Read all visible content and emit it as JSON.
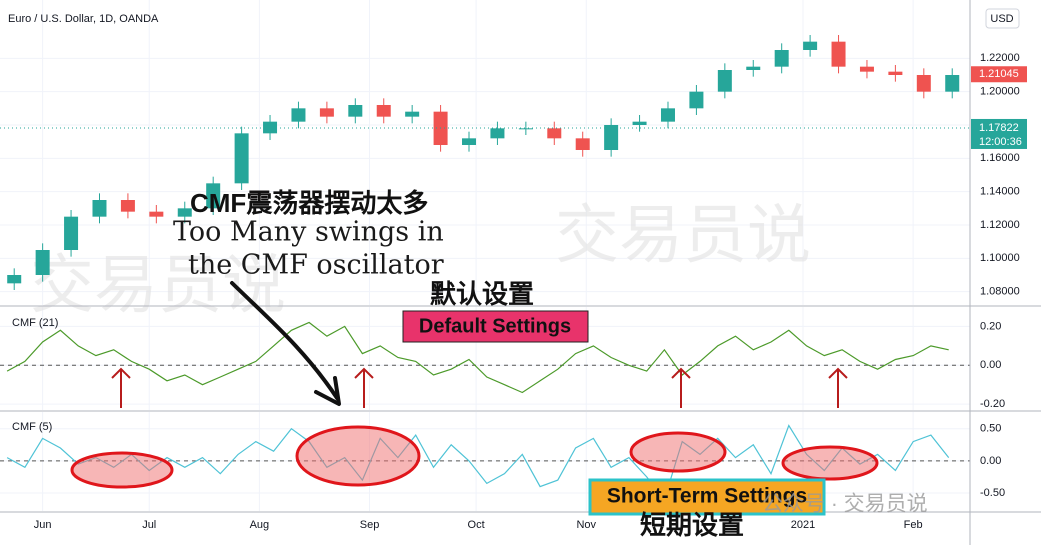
{
  "chart_data": [
    {
      "type": "candlestick",
      "title": "Euro / U.S. Dollar, 1D, OANDA",
      "currency": "USD",
      "x": [
        -8,
        0,
        8,
        16,
        24,
        32,
        40,
        48,
        56,
        64,
        72,
        80,
        88,
        96,
        104,
        112,
        120,
        128,
        136,
        144,
        152,
        160,
        168,
        176,
        184,
        192,
        200,
        208,
        216,
        224,
        232,
        240,
        248,
        256
      ],
      "open": [
        1.085,
        1.09,
        1.105,
        1.125,
        1.135,
        1.128,
        1.125,
        1.13,
        1.145,
        1.175,
        1.182,
        1.19,
        1.185,
        1.192,
        1.185,
        1.188,
        1.168,
        1.172,
        1.178,
        1.178,
        1.172,
        1.165,
        1.18,
        1.182,
        1.19,
        1.2,
        1.213,
        1.215,
        1.225,
        1.23,
        1.215,
        1.212,
        1.21,
        1.2
      ],
      "high": [
        1.094,
        1.109,
        1.129,
        1.139,
        1.139,
        1.132,
        1.134,
        1.149,
        1.179,
        1.186,
        1.194,
        1.194,
        1.196,
        1.196,
        1.192,
        1.192,
        1.176,
        1.182,
        1.182,
        1.182,
        1.176,
        1.184,
        1.186,
        1.194,
        1.204,
        1.217,
        1.219,
        1.229,
        1.234,
        1.234,
        1.219,
        1.216,
        1.214,
        1.214
      ],
      "low": [
        1.081,
        1.086,
        1.101,
        1.121,
        1.124,
        1.121,
        1.121,
        1.126,
        1.141,
        1.171,
        1.178,
        1.181,
        1.181,
        1.181,
        1.181,
        1.164,
        1.164,
        1.168,
        1.174,
        1.168,
        1.161,
        1.161,
        1.176,
        1.178,
        1.186,
        1.196,
        1.209,
        1.211,
        1.221,
        1.211,
        1.208,
        1.206,
        1.196,
        1.196
      ],
      "close": [
        1.09,
        1.105,
        1.125,
        1.135,
        1.128,
        1.125,
        1.13,
        1.145,
        1.175,
        1.182,
        1.19,
        1.185,
        1.192,
        1.185,
        1.188,
        1.168,
        1.172,
        1.178,
        1.178,
        1.172,
        1.165,
        1.18,
        1.182,
        1.19,
        1.2,
        1.213,
        1.215,
        1.225,
        1.23,
        1.215,
        1.212,
        1.21,
        1.2,
        1.21
      ],
      "up_color": "#26a69a",
      "down_color": "#ef5350",
      "current_price": 1.21045,
      "line_price": 1.17822,
      "countdown": "12:00:36",
      "xlim": [
        -12,
        261
      ],
      "ylim": [
        1.072,
        1.255
      ],
      "yticks": [
        {
          "value": 1.08,
          "label": "1.08000"
        },
        {
          "value": 1.1,
          "label": "1.10000"
        },
        {
          "value": 1.12,
          "label": "1.12000"
        },
        {
          "value": 1.14,
          "label": "1.14000"
        },
        {
          "value": 1.16,
          "label": "1.16000"
        },
        {
          "value": 1.18,
          "label": "1.18000"
        },
        {
          "value": 1.2,
          "label": "1.20000"
        },
        {
          "value": 1.22,
          "label": "1.22000"
        }
      ],
      "grid": true,
      "annotations": [
        "CMF震荡器摆动太多",
        "Too Many swings in",
        "the CMF oscillator"
      ],
      "watermark": "交易员说"
    },
    {
      "type": "line",
      "title": "CMF (21)",
      "color": "#4c9a2a",
      "zero_line": 0,
      "x": [
        -10,
        -5,
        0,
        5,
        10,
        15,
        20,
        25,
        30,
        35,
        40,
        45,
        50,
        55,
        60,
        65,
        70,
        75,
        80,
        85,
        90,
        95,
        100,
        105,
        110,
        115,
        120,
        125,
        130,
        135,
        140,
        145,
        150,
        155,
        160,
        165,
        170,
        175,
        180,
        185,
        190,
        195,
        200,
        205,
        210,
        215,
        220,
        225,
        230,
        235,
        240,
        245,
        250,
        255
      ],
      "values": [
        -0.03,
        0.02,
        0.12,
        0.18,
        0.1,
        0.05,
        0.08,
        0.02,
        -0.02,
        -0.08,
        -0.05,
        -0.1,
        -0.06,
        -0.02,
        0.02,
        0.1,
        0.18,
        0.22,
        0.15,
        0.2,
        0.06,
        0.1,
        0.04,
        0.02,
        -0.05,
        -0.02,
        0.03,
        -0.06,
        -0.1,
        -0.14,
        -0.08,
        -0.02,
        0.06,
        0.1,
        0.04,
        0.0,
        -0.03,
        0.08,
        -0.05,
        0.02,
        0.1,
        0.15,
        0.08,
        0.12,
        0.18,
        0.1,
        0.05,
        0.08,
        0.02,
        -0.02,
        0.03,
        0.05,
        0.1,
        0.08
      ],
      "xlim": [
        -12,
        261
      ],
      "ylim": [
        -0.23,
        0.3
      ],
      "yticks": [
        {
          "value": 0.2,
          "label": "0.20"
        },
        {
          "value": 0,
          "label": "0.00"
        },
        {
          "value": -0.2,
          "label": "-0.20"
        }
      ],
      "annotations": [
        "默认设置",
        "Default Settings"
      ]
    },
    {
      "type": "line",
      "title": "CMF (5)",
      "color": "#4fc3d6",
      "zero_line": 0,
      "x": [
        -10,
        -5,
        0,
        5,
        10,
        15,
        20,
        25,
        30,
        35,
        40,
        45,
        50,
        55,
        60,
        65,
        70,
        75,
        80,
        85,
        90,
        95,
        100,
        105,
        110,
        115,
        120,
        125,
        130,
        135,
        140,
        145,
        150,
        155,
        160,
        165,
        170,
        175,
        180,
        185,
        190,
        195,
        200,
        205,
        210,
        215,
        220,
        225,
        230,
        235,
        240,
        245,
        250,
        255
      ],
      "values": [
        0.05,
        -0.1,
        0.35,
        0.2,
        -0.05,
        0.05,
        -0.1,
        0.1,
        -0.15,
        0.05,
        -0.1,
        0.05,
        -0.2,
        0.1,
        0.3,
        0.15,
        0.5,
        0.3,
        -0.1,
        0.05,
        -0.3,
        0.35,
        0.05,
        0.4,
        -0.1,
        0.25,
        0.0,
        -0.35,
        -0.2,
        0.1,
        -0.4,
        -0.3,
        0.2,
        0.35,
        -0.1,
        0.05,
        -0.25,
        -0.6,
        0.3,
        0.1,
        0.35,
        0.05,
        0.25,
        -0.2,
        0.55,
        0.1,
        -0.15,
        0.2,
        -0.05,
        0.1,
        -0.15,
        0.3,
        0.4,
        0.05
      ],
      "xlim": [
        -12,
        261
      ],
      "ylim": [
        -0.78,
        0.76
      ],
      "yticks": [
        {
          "value": 0.5,
          "label": "0.50"
        },
        {
          "value": 0,
          "label": "0.00"
        },
        {
          "value": -0.5,
          "label": "-0.50"
        }
      ],
      "xticks": [
        {
          "value": 0,
          "label": "Jun"
        },
        {
          "value": 30,
          "label": "Jul"
        },
        {
          "value": 61,
          "label": "Aug"
        },
        {
          "value": 92,
          "label": "Sep"
        },
        {
          "value": 122,
          "label": "Oct"
        },
        {
          "value": 153,
          "label": "Nov"
        },
        {
          "value": 214,
          "label": "2021"
        },
        {
          "value": 245,
          "label": "Feb"
        }
      ],
      "annotations": [
        "短期设置",
        "Short-Term Settings"
      ],
      "watermark": "公众号 · 交易员说"
    }
  ]
}
